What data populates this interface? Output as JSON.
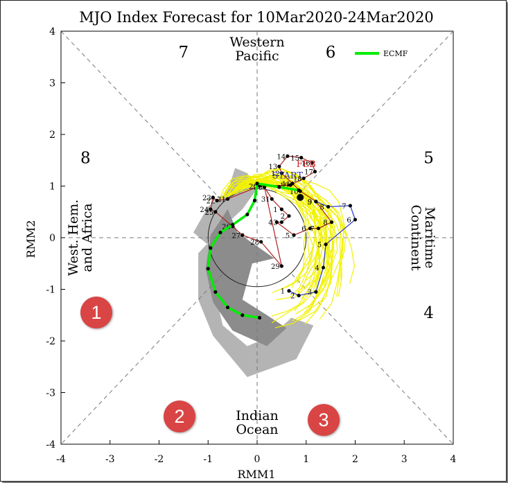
{
  "chart_data": {
    "type": "line",
    "title": "MJO Index Forecast for 10Mar2020-24Mar2020",
    "xlabel": "RMM1",
    "ylabel": "RMM2",
    "xlim": [
      -4,
      4
    ],
    "ylim": [
      -4,
      4
    ],
    "ticks": [
      "-4",
      "-3",
      "-2",
      "-1",
      "0",
      "1",
      "2",
      "3",
      "4"
    ],
    "phase_numbers": [
      {
        "label": "1",
        "x": -3.3,
        "y": -1.45
      },
      {
        "label": "2",
        "x": -1.55,
        "y": -3.45
      },
      {
        "label": "3",
        "x": 1.45,
        "y": -3.45
      },
      {
        "label": "4",
        "x": 3.5,
        "y": -1.45
      },
      {
        "label": "5",
        "x": 3.5,
        "y": 1.55
      },
      {
        "label": "6",
        "x": 1.5,
        "y": 3.6
      },
      {
        "label": "7",
        "x": -1.5,
        "y": 3.6
      },
      {
        "label": "8",
        "x": -3.5,
        "y": 1.55
      }
    ],
    "region_labels": [
      {
        "name": "top",
        "lines": [
          "Western",
          "Pacific"
        ]
      },
      {
        "name": "bottom",
        "lines": [
          "Indian",
          "Ocean"
        ]
      },
      {
        "name": "left",
        "lines": [
          "West. Hem.",
          "and Africa"
        ]
      },
      {
        "name": "right",
        "lines": [
          "Maritime",
          "Continent"
        ]
      }
    ],
    "legend": {
      "label": "ECMF",
      "color": "#00ee00",
      "position": "top-right"
    },
    "month_labels": [
      {
        "text": "FEB",
        "color": "#cc2222",
        "x": 1.0,
        "y": 1.37
      },
      {
        "text": "START",
        "color": "#3333aa",
        "x": 0.62,
        "y": 1.15
      }
    ],
    "series": [
      {
        "name": "blue",
        "color": "#2233cc",
        "points": [
          {
            "d": "1",
            "x": 0.65,
            "y": -1.03
          },
          {
            "d": "2",
            "x": 0.85,
            "y": -1.12
          },
          {
            "d": "3",
            "x": 1.2,
            "y": -1.05
          },
          {
            "d": "4",
            "x": 1.35,
            "y": -0.58
          },
          {
            "d": "5",
            "x": 1.4,
            "y": -0.13
          },
          {
            "d": "6",
            "x": 2.0,
            "y": 0.35
          },
          {
            "d": "7",
            "x": 1.9,
            "y": 0.62
          },
          {
            "d": "8",
            "x": 1.45,
            "y": 0.6
          },
          {
            "d": "9",
            "x": 1.2,
            "y": 0.7
          }
        ]
      },
      {
        "name": "red",
        "color": "#aa2222",
        "points": [
          {
            "d": "9",
            "x": 1.2,
            "y": 0.7
          },
          {
            "d": "10",
            "x": 0.88,
            "y": 0.9
          },
          {
            "d": "11",
            "x": 0.72,
            "y": 1.05
          },
          {
            "d": "12",
            "x": 0.5,
            "y": 1.25
          },
          {
            "d": "13",
            "x": 0.45,
            "y": 1.38
          },
          {
            "d": "14",
            "x": 0.62,
            "y": 1.58
          },
          {
            "d": "15",
            "x": 0.9,
            "y": 1.55
          },
          {
            "d": "16",
            "x": 1.12,
            "y": 1.45
          },
          {
            "d": "17",
            "x": 1.18,
            "y": 1.28
          },
          {
            "d": "18",
            "x": 0.95,
            "y": 1.15
          },
          {
            "d": "19",
            "x": 0.68,
            "y": 1.02
          },
          {
            "d": "20",
            "x": 0.05,
            "y": 1.0
          },
          {
            "d": "21",
            "x": -0.6,
            "y": 0.75
          },
          {
            "d": "22",
            "x": -0.82,
            "y": 0.72
          },
          {
            "d": "23",
            "x": -0.9,
            "y": 0.78
          },
          {
            "d": "24",
            "x": -0.95,
            "y": 0.55
          },
          {
            "d": "25",
            "x": -0.85,
            "y": 0.5
          },
          {
            "d": "26",
            "x": -0.5,
            "y": 0.22
          },
          {
            "d": "27",
            "x": -0.3,
            "y": 0.05
          },
          {
            "d": "28",
            "x": 0.08,
            "y": -0.08
          },
          {
            "d": "29",
            "x": 0.5,
            "y": -0.55
          },
          {
            "d": "30",
            "x": 0.15,
            "y": 0.98
          },
          {
            "d": "31",
            "x": 0.3,
            "y": 0.75
          },
          {
            "d": "1",
            "x": 0.5,
            "y": 0.55
          },
          {
            "d": "2",
            "x": 0.65,
            "y": 0.42
          },
          {
            "d": "3",
            "x": 0.5,
            "y": 0.3
          },
          {
            "d": "4",
            "x": 0.4,
            "y": 0.3
          },
          {
            "d": "5",
            "x": 0.75,
            "y": 0.05
          },
          {
            "d": "6",
            "x": 1.08,
            "y": 0.18
          },
          {
            "d": "7",
            "x": 1.25,
            "y": 0.18
          },
          {
            "d": "8",
            "x": 1.52,
            "y": 0.3
          },
          {
            "d": "9",
            "x": 1.2,
            "y": 0.7
          }
        ]
      },
      {
        "name": "ECMF",
        "color": "#00ee00",
        "points": [
          {
            "x": 0.85,
            "y": 0.92
          },
          {
            "x": 0.45,
            "y": 0.98
          },
          {
            "x": 0.0,
            "y": 1.05
          },
          {
            "x": -0.05,
            "y": 0.72
          },
          {
            "x": -0.2,
            "y": 0.45
          },
          {
            "x": -0.5,
            "y": 0.25
          },
          {
            "x": -0.75,
            "y": 0.1
          },
          {
            "x": -0.95,
            "y": -0.2
          },
          {
            "x": -1.0,
            "y": -0.6
          },
          {
            "x": -0.85,
            "y": -1.05
          },
          {
            "x": -0.6,
            "y": -1.35
          },
          {
            "x": -0.3,
            "y": -1.5
          },
          {
            "x": 0.05,
            "y": -1.55
          }
        ]
      }
    ]
  },
  "badges": [
    "1",
    "2",
    "3"
  ]
}
